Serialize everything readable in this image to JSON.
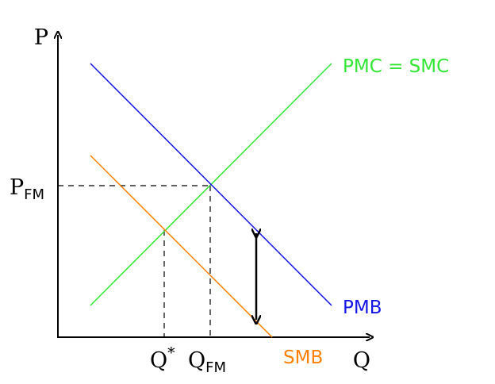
{
  "axes": {
    "y_label": "P",
    "x_label": "Q"
  },
  "labels": {
    "p_fm_main": "P",
    "p_fm_sub": "FM",
    "q_star_main": "Q",
    "q_star_sup": "*",
    "q_fm_main": "Q",
    "q_fm_sub": "FM"
  },
  "curves": {
    "pmc_smc": {
      "label": "PMC = SMC",
      "color": "#33e633"
    },
    "pmb": {
      "label": "PMB",
      "color": "#1414e6"
    },
    "smb": {
      "label": "SMB",
      "color": "#ff8000"
    }
  },
  "markers": {
    "gap_arrow": {
      "kind": "double-headed",
      "color": "#000000"
    }
  }
}
